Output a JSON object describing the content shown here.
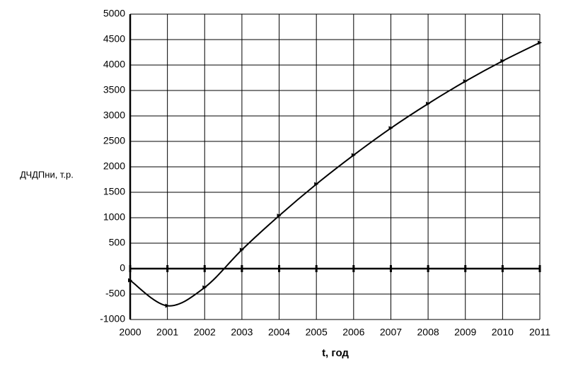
{
  "chart_data": {
    "type": "line",
    "x_label": "t, год",
    "y_label": "ДЧДПни, т.р.",
    "x": [
      2000,
      2001,
      2002,
      2003,
      2004,
      2005,
      2006,
      2007,
      2008,
      2009,
      2010,
      2011
    ],
    "values": [
      -230,
      -730,
      -370,
      370,
      1040,
      1660,
      2230,
      2760,
      3240,
      3680,
      4080,
      4440
    ],
    "color": "#000000",
    "xlim": [
      2000,
      2011
    ],
    "xticks": [
      2000,
      2001,
      2002,
      2003,
      2004,
      2005,
      2006,
      2007,
      2008,
      2009,
      2010,
      2011
    ],
    "ylim": [
      -1000,
      5000
    ],
    "yticks": [
      -1000,
      -500,
      0,
      500,
      1000,
      1500,
      2000,
      2500,
      3000,
      3500,
      4000,
      4500,
      5000
    ],
    "grid": true
  }
}
